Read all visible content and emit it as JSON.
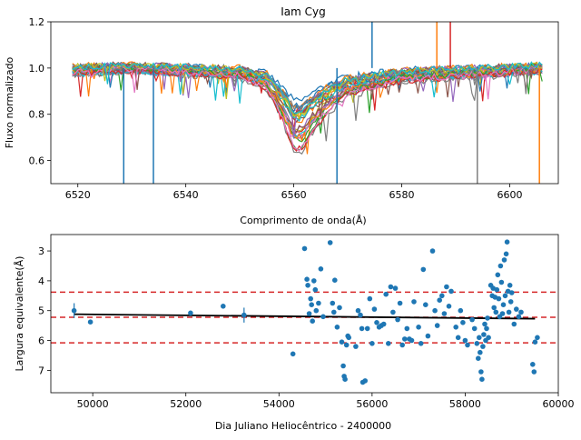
{
  "chart_data": [
    {
      "type": "line",
      "title": "Iam Cyg",
      "xlabel": "Comprimento de onda(Å)",
      "ylabel": "Fluxo normalizado",
      "xlim": [
        6515,
        6609
      ],
      "ylim": [
        0.5,
        1.2
      ],
      "xticks": [
        6520,
        6540,
        6560,
        6580,
        6600
      ],
      "yticks": [
        0.6,
        0.8,
        1.0,
        1.2
      ],
      "ytick_labels": [
        "0.6",
        "0.8",
        "1.0",
        "1.2"
      ],
      "grid": false,
      "profile": {
        "description_values_x": [
          6519,
          6530,
          6540,
          6550,
          6555,
          6558,
          6560,
          6561.5,
          6563,
          6566,
          6570,
          6580,
          6590,
          6600,
          6606
        ],
        "mean_y": [
          0.99,
          1.0,
          0.99,
          0.98,
          0.95,
          0.86,
          0.78,
          0.78,
          0.82,
          0.88,
          0.93,
          0.97,
          0.98,
          0.99,
          1.0
        ]
      },
      "series_colors": [
        "#1f77b4",
        "#ff7f0e",
        "#2ca02c",
        "#d62728",
        "#9467bd",
        "#8c564b",
        "#e377c2",
        "#7f7f7f",
        "#bcbd22",
        "#17becf"
      ]
    },
    {
      "type": "scatter",
      "xlabel": "Dia Juliano Heliocêntrico - 2400000",
      "ylabel": "Largura equivalente(Å)",
      "xlim": [
        49100,
        60000
      ],
      "ylim": [
        7.75,
        2.45
      ],
      "y_inverted": true,
      "xticks": [
        50000,
        52000,
        54000,
        56000,
        58000,
        60000
      ],
      "yticks": [
        3,
        4,
        5,
        6,
        7
      ],
      "mean_line": 5.22,
      "sigma_lines": [
        4.38,
        6.08
      ],
      "trend": {
        "x": [
          49600,
          59500
        ],
        "y": [
          5.12,
          5.27
        ]
      },
      "errorbar_points": [
        {
          "x": 49600,
          "y": 5.0,
          "err": 0.25
        },
        {
          "x": 53250,
          "y": 5.15,
          "err": 0.25
        }
      ],
      "point_color": "#1f77b4",
      "sigma_color": "#d62728",
      "points": [
        [
          49600,
          5.0
        ],
        [
          49950,
          5.38
        ],
        [
          52100,
          5.08
        ],
        [
          52800,
          4.85
        ],
        [
          53250,
          5.15
        ],
        [
          54300,
          6.45
        ],
        [
          54550,
          2.92
        ],
        [
          54600,
          3.95
        ],
        [
          54620,
          4.15
        ],
        [
          54650,
          5.1
        ],
        [
          54680,
          4.6
        ],
        [
          54700,
          4.8
        ],
        [
          54720,
          5.35
        ],
        [
          54750,
          4.0
        ],
        [
          54780,
          4.3
        ],
        [
          54800,
          5.0
        ],
        [
          54850,
          4.75
        ],
        [
          54900,
          3.6
        ],
        [
          54950,
          5.2
        ],
        [
          55100,
          2.72
        ],
        [
          55150,
          4.75
        ],
        [
          55180,
          5.05
        ],
        [
          55200,
          3.98
        ],
        [
          55250,
          5.55
        ],
        [
          55300,
          4.9
        ],
        [
          55350,
          6.05
        ],
        [
          55380,
          6.85
        ],
        [
          55400,
          7.2
        ],
        [
          55420,
          7.3
        ],
        [
          55450,
          6.15
        ],
        [
          55480,
          5.85
        ],
        [
          55500,
          5.9
        ],
        [
          55650,
          6.2
        ],
        [
          55700,
          5.0
        ],
        [
          55750,
          5.15
        ],
        [
          55780,
          5.6
        ],
        [
          55800,
          7.4
        ],
        [
          55850,
          7.35
        ],
        [
          55900,
          5.6
        ],
        [
          55950,
          4.6
        ],
        [
          56000,
          6.1
        ],
        [
          56050,
          4.95
        ],
        [
          56100,
          5.4
        ],
        [
          56150,
          5.55
        ],
        [
          56200,
          5.5
        ],
        [
          56250,
          5.45
        ],
        [
          56300,
          4.45
        ],
        [
          56350,
          6.1
        ],
        [
          56400,
          4.2
        ],
        [
          56450,
          5.05
        ],
        [
          56500,
          4.25
        ],
        [
          56550,
          5.3
        ],
        [
          56600,
          4.75
        ],
        [
          56650,
          6.15
        ],
        [
          56700,
          5.95
        ],
        [
          56750,
          5.6
        ],
        [
          56800,
          5.95
        ],
        [
          56850,
          6.0
        ],
        [
          56900,
          4.7
        ],
        [
          57000,
          5.55
        ],
        [
          57050,
          6.1
        ],
        [
          57100,
          3.62
        ],
        [
          57150,
          4.8
        ],
        [
          57200,
          5.85
        ],
        [
          57300,
          3.0
        ],
        [
          57350,
          5.0
        ],
        [
          57400,
          5.5
        ],
        [
          57450,
          4.65
        ],
        [
          57500,
          4.5
        ],
        [
          57550,
          5.1
        ],
        [
          57600,
          4.2
        ],
        [
          57650,
          4.85
        ],
        [
          57700,
          4.35
        ],
        [
          57800,
          5.55
        ],
        [
          57850,
          5.9
        ],
        [
          57900,
          5.0
        ],
        [
          57950,
          5.4
        ],
        [
          58000,
          6.0
        ],
        [
          58050,
          6.15
        ],
        [
          58150,
          5.3
        ],
        [
          58200,
          5.6
        ],
        [
          58250,
          6.1
        ],
        [
          58280,
          6.6
        ],
        [
          58300,
          5.9
        ],
        [
          58320,
          6.4
        ],
        [
          58340,
          7.05
        ],
        [
          58360,
          7.3
        ],
        [
          58380,
          6.2
        ],
        [
          58400,
          5.8
        ],
        [
          58420,
          5.45
        ],
        [
          58440,
          6.0
        ],
        [
          58460,
          5.6
        ],
        [
          58480,
          5.25
        ],
        [
          58500,
          5.9
        ],
        [
          58550,
          4.15
        ],
        [
          58580,
          4.5
        ],
        [
          58600,
          4.25
        ],
        [
          58620,
          4.9
        ],
        [
          58640,
          4.55
        ],
        [
          58660,
          5.05
        ],
        [
          58680,
          4.3
        ],
        [
          58700,
          3.8
        ],
        [
          58720,
          4.6
        ],
        [
          58740,
          5.2
        ],
        [
          58760,
          3.5
        ],
        [
          58780,
          4.05
        ],
        [
          58800,
          5.1
        ],
        [
          58820,
          4.8
        ],
        [
          58840,
          3.3
        ],
        [
          58860,
          4.5
        ],
        [
          58880,
          3.1
        ],
        [
          58900,
          2.7
        ],
        [
          58920,
          4.35
        ],
        [
          58940,
          5.05
        ],
        [
          58960,
          4.15
        ],
        [
          58980,
          4.7
        ],
        [
          59000,
          4.4
        ],
        [
          59050,
          5.45
        ],
        [
          59100,
          4.95
        ],
        [
          59150,
          5.2
        ],
        [
          59200,
          5.05
        ],
        [
          59450,
          6.8
        ],
        [
          59480,
          7.05
        ],
        [
          59500,
          6.05
        ],
        [
          59550,
          5.9
        ]
      ]
    }
  ]
}
